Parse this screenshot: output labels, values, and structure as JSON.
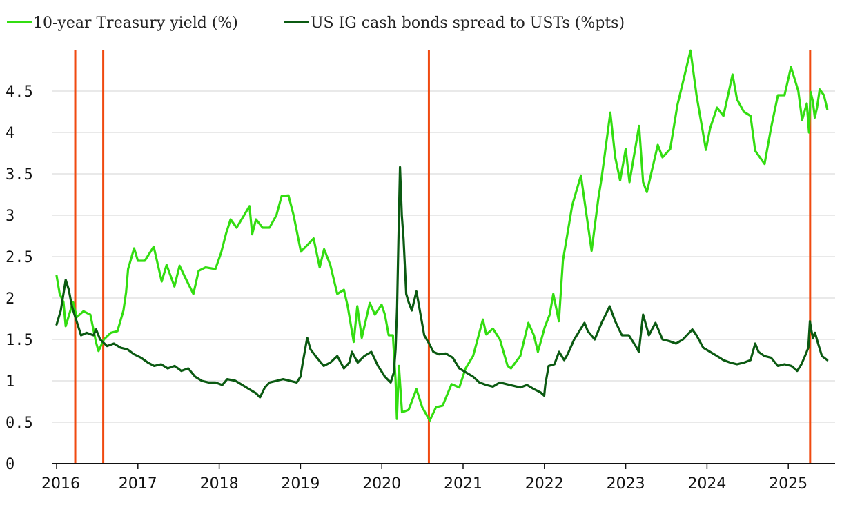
{
  "chart_data": {
    "type": "line",
    "title": "",
    "xlabel": "",
    "ylabel": "",
    "x_range": [
      "2016-01-01",
      "2025-06-25"
    ],
    "ylim": [
      0,
      5
    ],
    "x_ticks": [
      "2016",
      "2017",
      "2018",
      "2019",
      "2020",
      "2021",
      "2022",
      "2023",
      "2024",
      "2025"
    ],
    "y_ticks": [
      "0",
      "0.5",
      "1",
      "1.5",
      "2",
      "2.5",
      "3",
      "3.5",
      "4",
      "4.5"
    ],
    "grid": "horizontal",
    "legend_position": "top-left",
    "colors": {
      "yield": "#33dd11",
      "spread": "#0b5a12",
      "event": "#f04a10",
      "grid": "#e2e2e2",
      "axis": "#111111"
    },
    "event_lines": [
      "2016-03-25",
      "2016-07-29",
      "2020-07-31",
      "2025-04-09"
    ],
    "series": [
      {
        "name": "10-year Treasury yield (%)",
        "points": [
          [
            "2016-01-01",
            2.27
          ],
          [
            "2016-01-15",
            2.05
          ],
          [
            "2016-02-01",
            1.95
          ],
          [
            "2016-02-11",
            1.66
          ],
          [
            "2016-03-01",
            1.83
          ],
          [
            "2016-03-15",
            1.95
          ],
          [
            "2016-04-01",
            1.77
          ],
          [
            "2016-05-01",
            1.84
          ],
          [
            "2016-06-01",
            1.8
          ],
          [
            "2016-06-27",
            1.46
          ],
          [
            "2016-07-08",
            1.36
          ],
          [
            "2016-08-01",
            1.5
          ],
          [
            "2016-09-01",
            1.58
          ],
          [
            "2016-10-01",
            1.6
          ],
          [
            "2016-10-28",
            1.85
          ],
          [
            "2016-11-09",
            2.07
          ],
          [
            "2016-11-18",
            2.35
          ],
          [
            "2016-12-15",
            2.6
          ],
          [
            "2017-01-01",
            2.45
          ],
          [
            "2017-02-01",
            2.45
          ],
          [
            "2017-03-13",
            2.62
          ],
          [
            "2017-04-01",
            2.4
          ],
          [
            "2017-04-18",
            2.2
          ],
          [
            "2017-05-10",
            2.4
          ],
          [
            "2017-06-14",
            2.14
          ],
          [
            "2017-07-07",
            2.39
          ],
          [
            "2017-08-01",
            2.25
          ],
          [
            "2017-09-07",
            2.05
          ],
          [
            "2017-10-01",
            2.33
          ],
          [
            "2017-11-01",
            2.37
          ],
          [
            "2017-12-15",
            2.35
          ],
          [
            "2018-01-10",
            2.55
          ],
          [
            "2018-02-01",
            2.78
          ],
          [
            "2018-02-21",
            2.95
          ],
          [
            "2018-03-20",
            2.85
          ],
          [
            "2018-04-25",
            3.01
          ],
          [
            "2018-05-17",
            3.11
          ],
          [
            "2018-05-29",
            2.77
          ],
          [
            "2018-06-15",
            2.95
          ],
          [
            "2018-07-15",
            2.85
          ],
          [
            "2018-08-15",
            2.85
          ],
          [
            "2018-09-15",
            3.0
          ],
          [
            "2018-10-08",
            3.23
          ],
          [
            "2018-11-08",
            3.24
          ],
          [
            "2018-12-01",
            3.0
          ],
          [
            "2019-01-03",
            2.56
          ],
          [
            "2019-02-15",
            2.68
          ],
          [
            "2019-03-01",
            2.72
          ],
          [
            "2019-03-28",
            2.37
          ],
          [
            "2019-04-17",
            2.59
          ],
          [
            "2019-05-15",
            2.4
          ],
          [
            "2019-06-15",
            2.05
          ],
          [
            "2019-07-15",
            2.1
          ],
          [
            "2019-08-01",
            1.9
          ],
          [
            "2019-08-28",
            1.47
          ],
          [
            "2019-09-13",
            1.9
          ],
          [
            "2019-10-03",
            1.52
          ],
          [
            "2019-11-08",
            1.94
          ],
          [
            "2019-12-01",
            1.8
          ],
          [
            "2019-12-31",
            1.92
          ],
          [
            "2020-01-15",
            1.8
          ],
          [
            "2020-02-01",
            1.55
          ],
          [
            "2020-02-20",
            1.55
          ],
          [
            "2020-03-03",
            1.0
          ],
          [
            "2020-03-09",
            0.54
          ],
          [
            "2020-03-18",
            1.18
          ],
          [
            "2020-04-01",
            0.62
          ],
          [
            "2020-05-01",
            0.65
          ],
          [
            "2020-06-05",
            0.9
          ],
          [
            "2020-07-01",
            0.68
          ],
          [
            "2020-08-04",
            0.52
          ],
          [
            "2020-09-01",
            0.68
          ],
          [
            "2020-10-01",
            0.7
          ],
          [
            "2020-11-10",
            0.96
          ],
          [
            "2020-12-15",
            0.92
          ],
          [
            "2021-01-12",
            1.15
          ],
          [
            "2021-02-15",
            1.3
          ],
          [
            "2021-03-31",
            1.74
          ],
          [
            "2021-04-15",
            1.56
          ],
          [
            "2021-05-15",
            1.63
          ],
          [
            "2021-06-15",
            1.5
          ],
          [
            "2021-07-20",
            1.18
          ],
          [
            "2021-08-04",
            1.15
          ],
          [
            "2021-09-15",
            1.3
          ],
          [
            "2021-10-21",
            1.7
          ],
          [
            "2021-11-15",
            1.55
          ],
          [
            "2021-12-03",
            1.35
          ],
          [
            "2022-01-03",
            1.65
          ],
          [
            "2022-01-25",
            1.8
          ],
          [
            "2022-02-10",
            2.05
          ],
          [
            "2022-03-07",
            1.72
          ],
          [
            "2022-03-25",
            2.45
          ],
          [
            "2022-05-06",
            3.12
          ],
          [
            "2022-06-14",
            3.48
          ],
          [
            "2022-08-01",
            2.57
          ],
          [
            "2022-08-31",
            3.2
          ],
          [
            "2022-09-15",
            3.45
          ],
          [
            "2022-10-24",
            4.24
          ],
          [
            "2022-11-15",
            3.7
          ],
          [
            "2022-12-07",
            3.42
          ],
          [
            "2023-01-01",
            3.8
          ],
          [
            "2023-01-18",
            3.4
          ],
          [
            "2023-03-02",
            4.08
          ],
          [
            "2023-03-20",
            3.4
          ],
          [
            "2023-04-06",
            3.28
          ],
          [
            "2023-05-25",
            3.85
          ],
          [
            "2023-06-15",
            3.7
          ],
          [
            "2023-07-20",
            3.8
          ],
          [
            "2023-08-21",
            4.33
          ],
          [
            "2023-10-19",
            4.99
          ],
          [
            "2023-11-15",
            4.45
          ],
          [
            "2023-12-27",
            3.79
          ],
          [
            "2024-01-15",
            4.05
          ],
          [
            "2024-02-15",
            4.3
          ],
          [
            "2024-03-15",
            4.2
          ],
          [
            "2024-04-25",
            4.7
          ],
          [
            "2024-05-15",
            4.4
          ],
          [
            "2024-06-15",
            4.25
          ],
          [
            "2024-07-15",
            4.2
          ],
          [
            "2024-08-05",
            3.78
          ],
          [
            "2024-09-16",
            3.62
          ],
          [
            "2024-10-15",
            4.05
          ],
          [
            "2024-11-15",
            4.45
          ],
          [
            "2024-12-15",
            4.45
          ],
          [
            "2025-01-13",
            4.79
          ],
          [
            "2025-02-15",
            4.5
          ],
          [
            "2025-03-04",
            4.15
          ],
          [
            "2025-03-25",
            4.35
          ],
          [
            "2025-04-04",
            4.0
          ],
          [
            "2025-04-11",
            4.49
          ],
          [
            "2025-04-21",
            4.38
          ],
          [
            "2025-04-30",
            4.18
          ],
          [
            "2025-05-10",
            4.3
          ],
          [
            "2025-05-22",
            4.52
          ],
          [
            "2025-06-10",
            4.45
          ],
          [
            "2025-06-25",
            4.28
          ]
        ]
      },
      {
        "name": "US IG cash bonds spread to USTs (%pts)",
        "points": [
          [
            "2016-01-01",
            1.68
          ],
          [
            "2016-01-20",
            1.85
          ],
          [
            "2016-02-11",
            2.22
          ],
          [
            "2016-02-25",
            2.1
          ],
          [
            "2016-03-10",
            1.9
          ],
          [
            "2016-03-31",
            1.72
          ],
          [
            "2016-04-20",
            1.55
          ],
          [
            "2016-05-15",
            1.58
          ],
          [
            "2016-06-15",
            1.55
          ],
          [
            "2016-06-27",
            1.62
          ],
          [
            "2016-07-15",
            1.5
          ],
          [
            "2016-08-15",
            1.42
          ],
          [
            "2016-09-15",
            1.45
          ],
          [
            "2016-10-15",
            1.4
          ],
          [
            "2016-11-15",
            1.38
          ],
          [
            "2016-12-15",
            1.32
          ],
          [
            "2017-01-15",
            1.28
          ],
          [
            "2017-02-15",
            1.22
          ],
          [
            "2017-03-15",
            1.18
          ],
          [
            "2017-04-15",
            1.2
          ],
          [
            "2017-05-15",
            1.15
          ],
          [
            "2017-06-15",
            1.18
          ],
          [
            "2017-07-15",
            1.12
          ],
          [
            "2017-08-15",
            1.15
          ],
          [
            "2017-09-15",
            1.05
          ],
          [
            "2017-10-15",
            1.0
          ],
          [
            "2017-11-15",
            0.98
          ],
          [
            "2017-12-15",
            0.98
          ],
          [
            "2018-01-15",
            0.95
          ],
          [
            "2018-02-06",
            1.02
          ],
          [
            "2018-03-15",
            1.0
          ],
          [
            "2018-04-15",
            0.95
          ],
          [
            "2018-05-15",
            0.9
          ],
          [
            "2018-06-15",
            0.85
          ],
          [
            "2018-07-03",
            0.8
          ],
          [
            "2018-07-25",
            0.92
          ],
          [
            "2018-08-15",
            0.98
          ],
          [
            "2018-09-15",
            1.0
          ],
          [
            "2018-10-15",
            1.02
          ],
          [
            "2018-11-15",
            1.0
          ],
          [
            "2018-12-15",
            0.98
          ],
          [
            "2019-01-01",
            1.05
          ],
          [
            "2019-01-10",
            1.2
          ],
          [
            "2019-01-31",
            1.52
          ],
          [
            "2019-02-15",
            1.38
          ],
          [
            "2019-03-15",
            1.28
          ],
          [
            "2019-04-15",
            1.18
          ],
          [
            "2019-05-15",
            1.22
          ],
          [
            "2019-06-15",
            1.3
          ],
          [
            "2019-07-15",
            1.15
          ],
          [
            "2019-08-08",
            1.22
          ],
          [
            "2019-08-20",
            1.35
          ],
          [
            "2019-09-15",
            1.22
          ],
          [
            "2019-10-15",
            1.3
          ],
          [
            "2019-11-15",
            1.35
          ],
          [
            "2019-12-15",
            1.18
          ],
          [
            "2020-01-15",
            1.05
          ],
          [
            "2020-02-10",
            0.98
          ],
          [
            "2020-02-24",
            1.1
          ],
          [
            "2020-03-03",
            1.38
          ],
          [
            "2020-03-10",
            1.9
          ],
          [
            "2020-03-16",
            2.7
          ],
          [
            "2020-03-23",
            3.58
          ],
          [
            "2020-03-31",
            3.0
          ],
          [
            "2020-04-08",
            2.72
          ],
          [
            "2020-04-20",
            2.05
          ],
          [
            "2020-05-01",
            1.95
          ],
          [
            "2020-05-15",
            1.85
          ],
          [
            "2020-06-05",
            2.08
          ],
          [
            "2020-06-25",
            1.78
          ],
          [
            "2020-07-10",
            1.55
          ],
          [
            "2020-08-01",
            1.45
          ],
          [
            "2020-08-20",
            1.35
          ],
          [
            "2020-09-15",
            1.32
          ],
          [
            "2020-10-15",
            1.33
          ],
          [
            "2020-11-15",
            1.28
          ],
          [
            "2020-12-15",
            1.15
          ],
          [
            "2021-01-15",
            1.1
          ],
          [
            "2021-02-15",
            1.05
          ],
          [
            "2021-03-15",
            0.98
          ],
          [
            "2021-04-15",
            0.95
          ],
          [
            "2021-05-15",
            0.93
          ],
          [
            "2021-06-15",
            0.98
          ],
          [
            "2021-07-15",
            0.96
          ],
          [
            "2021-08-15",
            0.94
          ],
          [
            "2021-09-15",
            0.92
          ],
          [
            "2021-10-15",
            0.95
          ],
          [
            "2021-11-15",
            0.9
          ],
          [
            "2021-12-15",
            0.86
          ],
          [
            "2021-12-31",
            0.82
          ],
          [
            "2022-01-05",
            0.95
          ],
          [
            "2022-01-20",
            1.18
          ],
          [
            "2022-02-15",
            1.2
          ],
          [
            "2022-03-08",
            1.35
          ],
          [
            "2022-03-31",
            1.25
          ],
          [
            "2022-04-15",
            1.32
          ],
          [
            "2022-05-15",
            1.5
          ],
          [
            "2022-06-30",
            1.7
          ],
          [
            "2022-07-15",
            1.6
          ],
          [
            "2022-08-15",
            1.5
          ],
          [
            "2022-09-15",
            1.7
          ],
          [
            "2022-10-21",
            1.9
          ],
          [
            "2022-11-15",
            1.72
          ],
          [
            "2022-12-15",
            1.55
          ],
          [
            "2023-01-15",
            1.55
          ],
          [
            "2023-02-15",
            1.42
          ],
          [
            "2023-03-01",
            1.35
          ],
          [
            "2023-03-20",
            1.8
          ],
          [
            "2023-04-15",
            1.55
          ],
          [
            "2023-05-15",
            1.7
          ],
          [
            "2023-06-15",
            1.5
          ],
          [
            "2023-07-15",
            1.48
          ],
          [
            "2023-08-15",
            1.45
          ],
          [
            "2023-09-15",
            1.5
          ],
          [
            "2023-10-27",
            1.62
          ],
          [
            "2023-11-15",
            1.55
          ],
          [
            "2023-12-15",
            1.4
          ],
          [
            "2024-01-15",
            1.35
          ],
          [
            "2024-02-15",
            1.3
          ],
          [
            "2024-03-15",
            1.25
          ],
          [
            "2024-04-15",
            1.22
          ],
          [
            "2024-05-15",
            1.2
          ],
          [
            "2024-06-15",
            1.22
          ],
          [
            "2024-07-15",
            1.25
          ],
          [
            "2024-08-05",
            1.45
          ],
          [
            "2024-08-20",
            1.35
          ],
          [
            "2024-09-15",
            1.3
          ],
          [
            "2024-10-15",
            1.28
          ],
          [
            "2024-11-15",
            1.18
          ],
          [
            "2024-12-15",
            1.2
          ],
          [
            "2025-01-15",
            1.18
          ],
          [
            "2025-02-10",
            1.12
          ],
          [
            "2025-03-01",
            1.2
          ],
          [
            "2025-03-20",
            1.32
          ],
          [
            "2025-04-01",
            1.4
          ],
          [
            "2025-04-08",
            1.72
          ],
          [
            "2025-04-15",
            1.6
          ],
          [
            "2025-04-22",
            1.52
          ],
          [
            "2025-05-01",
            1.58
          ],
          [
            "2025-05-15",
            1.45
          ],
          [
            "2025-06-01",
            1.3
          ],
          [
            "2025-06-25",
            1.25
          ]
        ]
      }
    ]
  }
}
